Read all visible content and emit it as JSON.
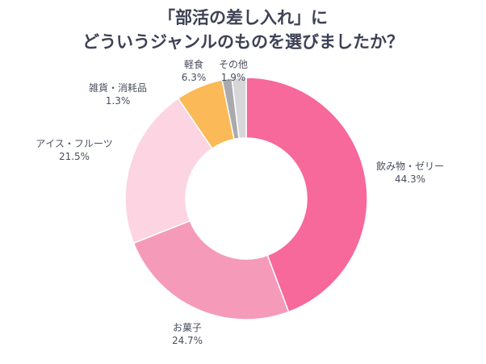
{
  "chart_data": {
    "type": "pie",
    "donut": true,
    "title_lines": [
      "「部活の差し入れ」に",
      "どういうジャンルのものを選びましたか？"
    ],
    "slices": [
      {
        "label": "飲み物・ゼリー",
        "value": 44.3,
        "value_label": "44.3%",
        "color": "#f7689b"
      },
      {
        "label": "お菓子",
        "value": 24.7,
        "value_label": "24.7%",
        "color": "#f59ab9"
      },
      {
        "label": "アイス・フルーツ",
        "value": 21.5,
        "value_label": "21.5%",
        "color": "#fcd4e2"
      },
      {
        "label": "軽食",
        "value": 6.3,
        "value_label": "6.3%",
        "color": "#fbb958"
      },
      {
        "label": "雑貨・消耗品",
        "value": 1.3,
        "value_label": "1.3%",
        "color": "#a9aaad"
      },
      {
        "label": "その他",
        "value": 1.9,
        "value_label": "1.9%",
        "color": "#d7d7d9"
      }
    ],
    "start": "top",
    "direction": "clockwise"
  }
}
